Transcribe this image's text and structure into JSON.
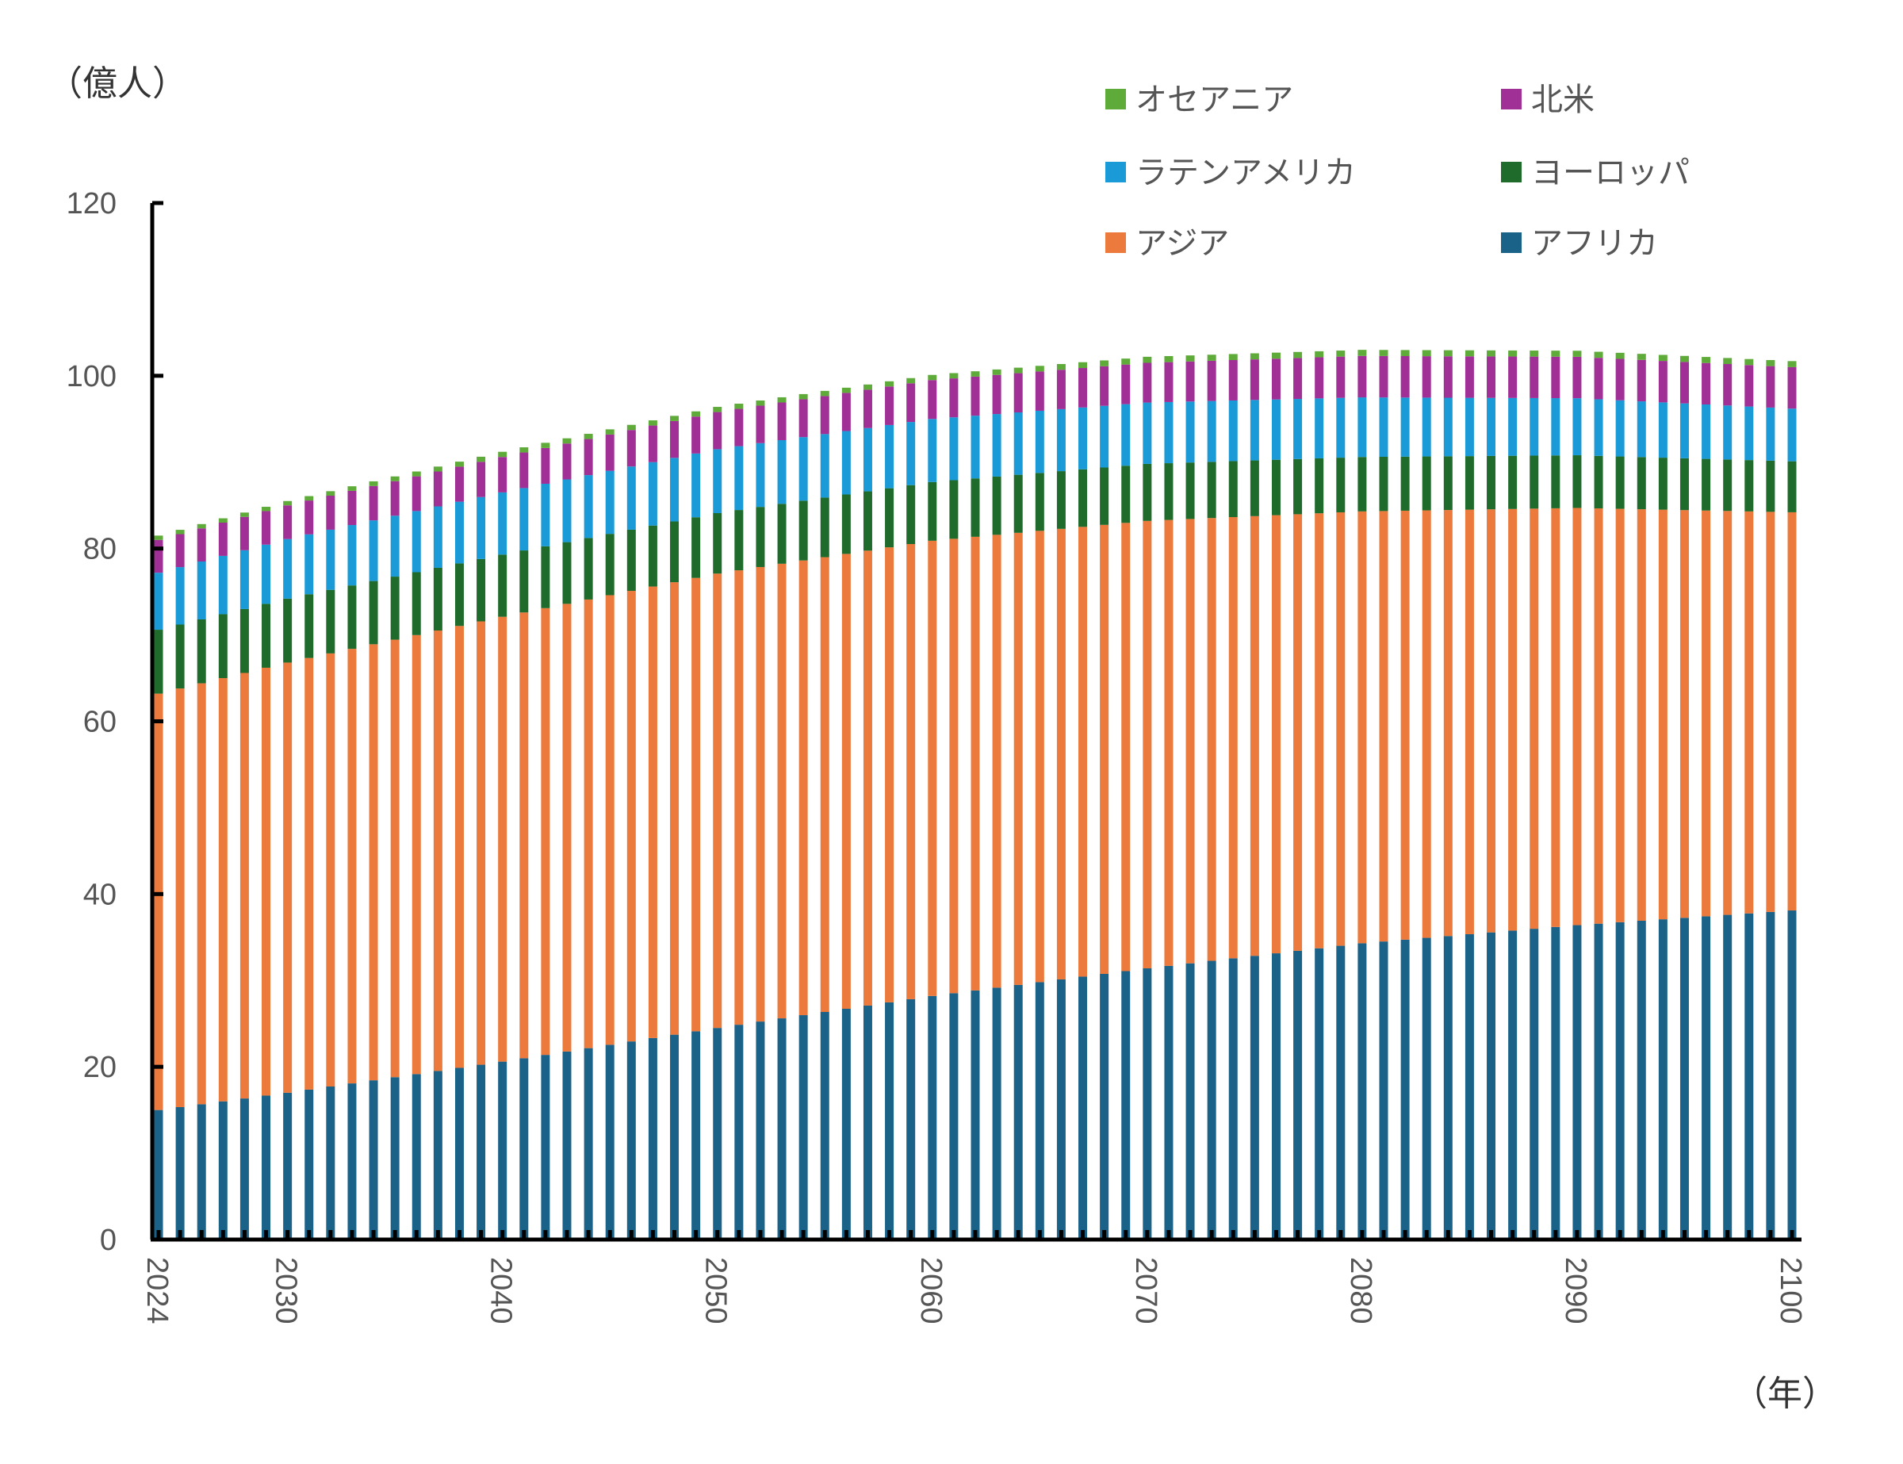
{
  "chart_data": {
    "type": "bar",
    "stacked": true,
    "ylabel": "（億人）",
    "xlabel": "（年）",
    "ylim": [
      0,
      120
    ],
    "yticks": [
      0,
      20,
      40,
      60,
      80,
      100,
      120
    ],
    "xticks": [
      2024,
      2030,
      2040,
      2050,
      2060,
      2070,
      2080,
      2090,
      2100
    ],
    "x_start": 2024,
    "x_end": 2100,
    "legend_position": "top-right",
    "series": [
      {
        "name": "アフリカ",
        "color": "#1b6289",
        "anchors": [
          [
            2024,
            15.0
          ],
          [
            2030,
            17.0
          ],
          [
            2040,
            20.6
          ],
          [
            2050,
            24.5
          ],
          [
            2060,
            28.2
          ],
          [
            2070,
            31.4
          ],
          [
            2080,
            34.3
          ],
          [
            2090,
            36.4
          ],
          [
            2100,
            38.1
          ]
        ]
      },
      {
        "name": "アジア",
        "color": "#eb7a3c",
        "anchors": [
          [
            2024,
            48.2
          ],
          [
            2030,
            49.8
          ],
          [
            2040,
            51.5
          ],
          [
            2050,
            52.6
          ],
          [
            2060,
            52.7
          ],
          [
            2070,
            51.8
          ],
          [
            2080,
            50.0
          ],
          [
            2090,
            48.3
          ],
          [
            2100,
            46.1
          ]
        ]
      },
      {
        "name": "ヨーロッパ",
        "color": "#1f6b2b",
        "anchors": [
          [
            2024,
            7.4
          ],
          [
            2030,
            7.4
          ],
          [
            2040,
            7.2
          ],
          [
            2050,
            7.0
          ],
          [
            2060,
            6.8
          ],
          [
            2070,
            6.6
          ],
          [
            2080,
            6.3
          ],
          [
            2090,
            6.1
          ],
          [
            2100,
            5.9
          ]
        ]
      },
      {
        "name": "ラテンアメリカ",
        "color": "#1a9ad6",
        "anchors": [
          [
            2024,
            6.6
          ],
          [
            2030,
            6.9
          ],
          [
            2040,
            7.2
          ],
          [
            2050,
            7.4
          ],
          [
            2060,
            7.3
          ],
          [
            2070,
            7.1
          ],
          [
            2080,
            6.9
          ],
          [
            2090,
            6.6
          ],
          [
            2100,
            6.1
          ]
        ]
      },
      {
        "name": "北米",
        "color": "#a02f96",
        "anchors": [
          [
            2024,
            3.8
          ],
          [
            2030,
            3.9
          ],
          [
            2040,
            4.1
          ],
          [
            2050,
            4.3
          ],
          [
            2060,
            4.5
          ],
          [
            2070,
            4.6
          ],
          [
            2080,
            4.8
          ],
          [
            2090,
            4.8
          ],
          [
            2100,
            4.8
          ]
        ]
      },
      {
        "name": "オセアニア",
        "color": "#5fab3a",
        "anchors": [
          [
            2024,
            0.5
          ],
          [
            2030,
            0.5
          ],
          [
            2040,
            0.6
          ],
          [
            2050,
            0.6
          ],
          [
            2060,
            0.6
          ],
          [
            2070,
            0.7
          ],
          [
            2080,
            0.7
          ],
          [
            2090,
            0.7
          ],
          [
            2100,
            0.7
          ]
        ]
      }
    ],
    "legend_order": [
      "オセアニア",
      "北米",
      "ラテンアメリカ",
      "ヨーロッパ",
      "アジア",
      "アフリカ"
    ]
  }
}
